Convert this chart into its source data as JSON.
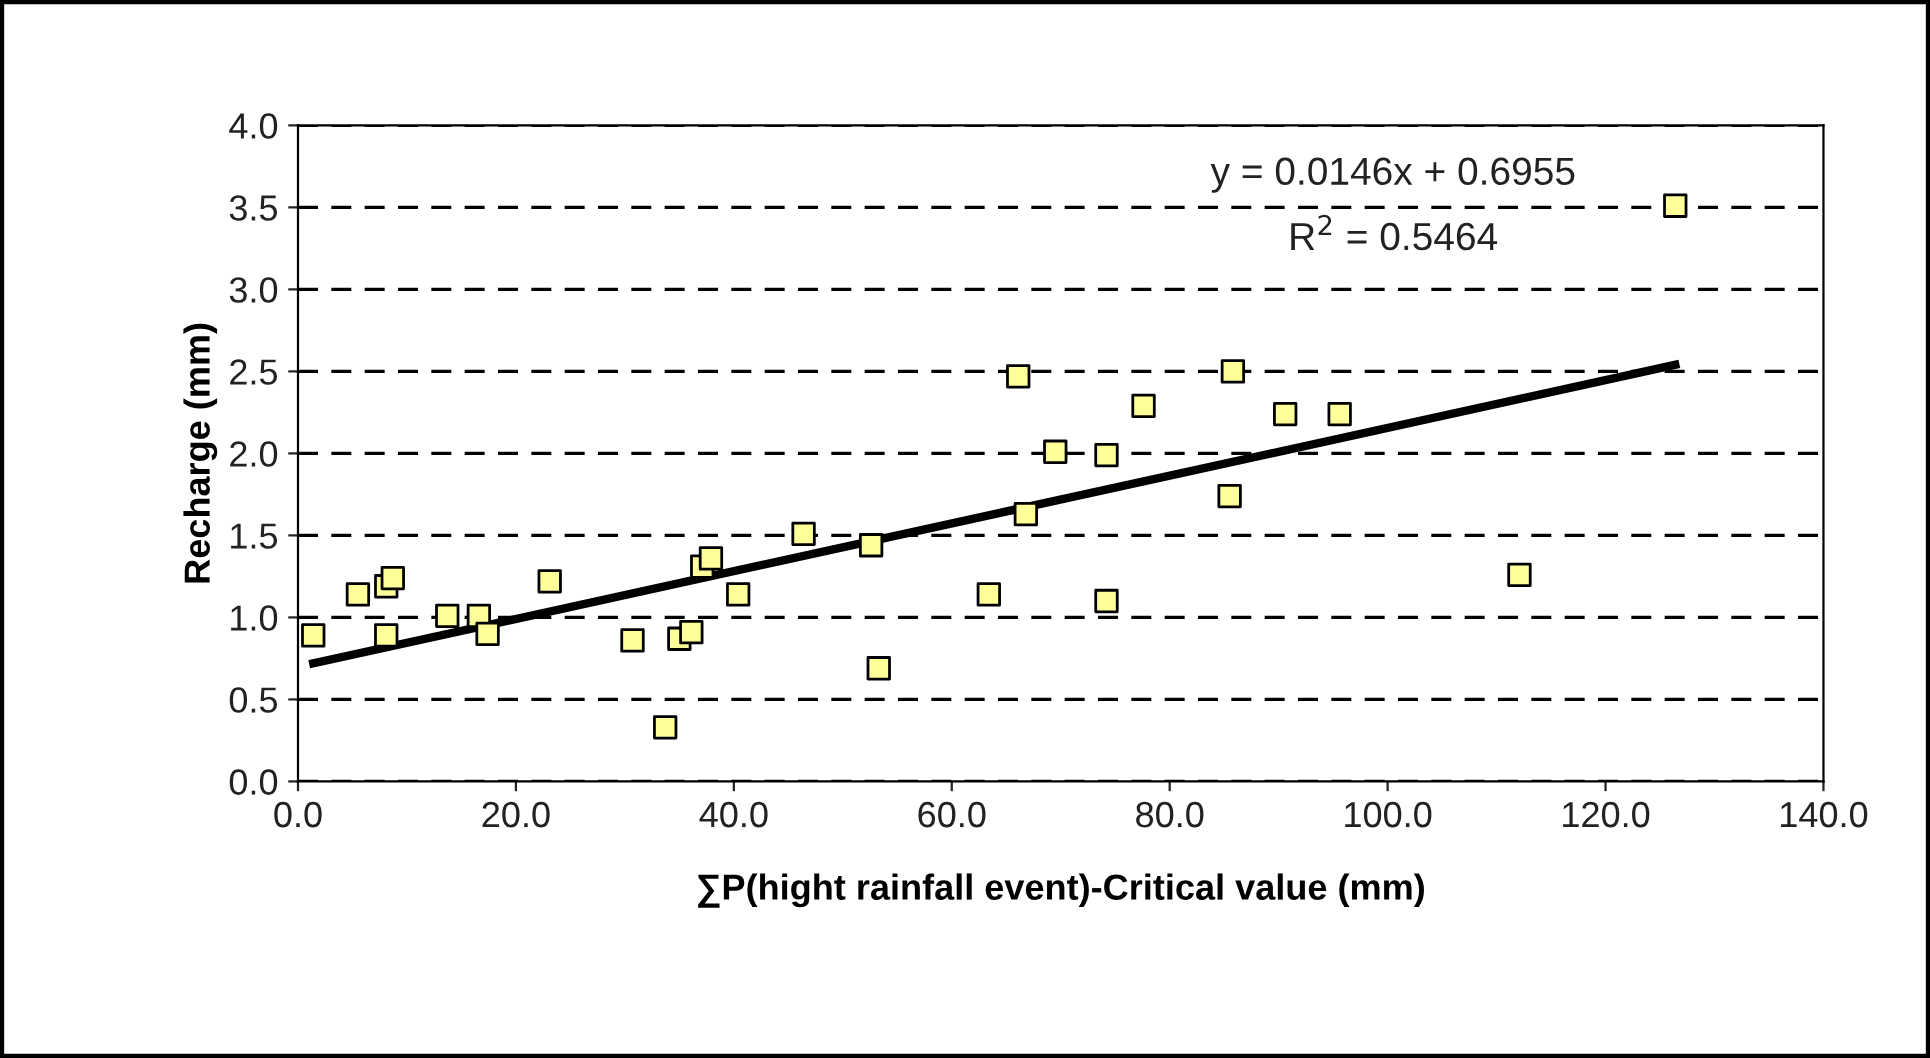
{
  "chart_data": {
    "type": "scatter",
    "xlabel": "∑P(hight rainfall event)-Critical value (mm)",
    "ylabel": "Recharge (mm)",
    "xlim": [
      0,
      140
    ],
    "ylim": [
      0,
      4
    ],
    "xticks": [
      {
        "value": 0,
        "label": "0.0"
      },
      {
        "value": 20,
        "label": "20.0"
      },
      {
        "value": 40,
        "label": "40.0"
      },
      {
        "value": 60,
        "label": "60.0"
      },
      {
        "value": 80,
        "label": "80.0"
      },
      {
        "value": 100,
        "label": "100.0"
      },
      {
        "value": 120,
        "label": "120.0"
      },
      {
        "value": 140,
        "label": "140.0"
      }
    ],
    "yticks": [
      {
        "value": 0,
        "label": "0.0"
      },
      {
        "value": 0.5,
        "label": "0.5"
      },
      {
        "value": 1,
        "label": "1.0"
      },
      {
        "value": 1.5,
        "label": "1.5"
      },
      {
        "value": 2,
        "label": "2.0"
      },
      {
        "value": 2.5,
        "label": "2.5"
      },
      {
        "value": 3,
        "label": "3.0"
      },
      {
        "value": 3.5,
        "label": "3.5"
      },
      {
        "value": 4,
        "label": "4.0"
      }
    ],
    "grid": "y",
    "legend": false,
    "series": [
      {
        "color": "#ffff99",
        "marker": "square",
        "x": [
          1.4,
          5.5,
          8.1,
          8.7,
          8.1,
          13.7,
          16.6,
          17.4,
          23.1,
          30.7,
          33.7,
          35.0,
          36.1,
          37.1,
          37.9,
          40.4,
          46.4,
          52.6,
          53.3,
          63.4,
          66.1,
          66.8,
          69.5,
          74.2,
          74.2,
          77.6,
          85.8,
          85.5,
          90.6,
          95.6,
          112.1,
          126.4
        ],
        "values": [
          0.89,
          1.14,
          1.19,
          1.24,
          0.89,
          1.01,
          1.01,
          0.9,
          1.22,
          0.86,
          0.33,
          0.87,
          0.91,
          1.31,
          1.36,
          1.14,
          1.51,
          1.44,
          0.69,
          1.14,
          2.47,
          1.63,
          2.01,
          1.99,
          1.1,
          2.29,
          2.5,
          1.74,
          2.24,
          2.24,
          1.26,
          3.51
        ]
      },
      {
        "type": "line",
        "color": "#000000",
        "marker": "none",
        "line_style": "solid",
        "x": [
          1.4,
          126.4
        ],
        "values": [
          0.72,
          2.54
        ]
      }
    ],
    "annotations": [
      "y = 0.0146x + 0.6955",
      "R$^{2}$ = 0.5464"
    ]
  }
}
